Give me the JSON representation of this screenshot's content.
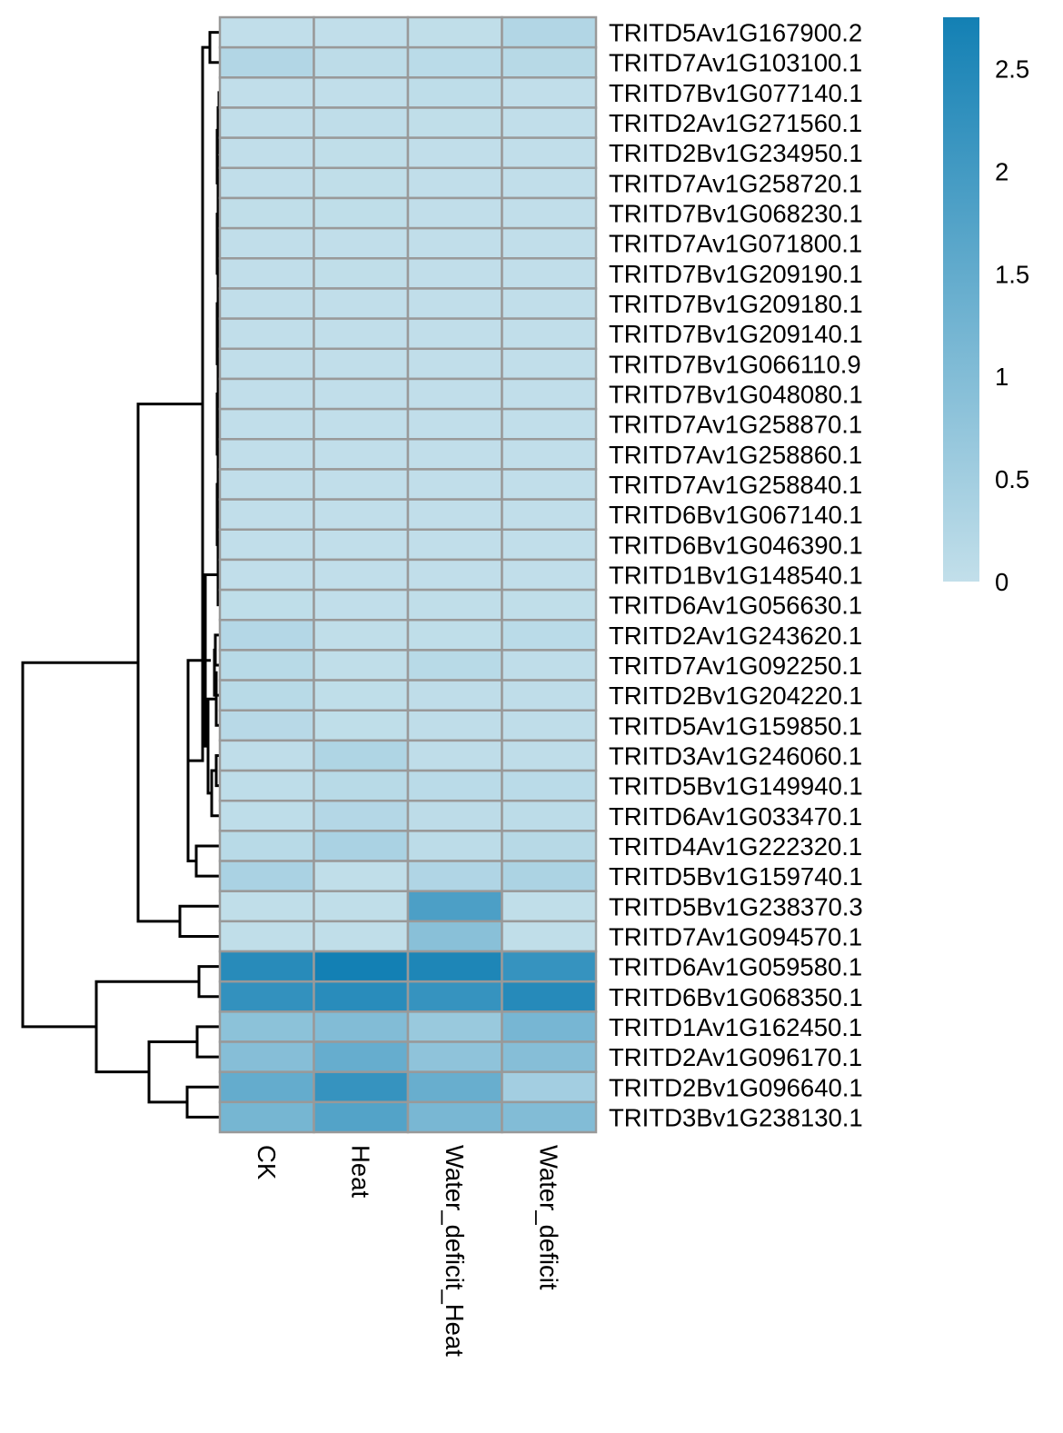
{
  "chart_data": {
    "type": "heatmap",
    "title": "",
    "columns": [
      "CK",
      "Heat",
      "Water_deficit_Heat",
      "Water_deficit"
    ],
    "rows": [
      "TRITD5Av1G167900.2",
      "TRITD7Av1G103100.1",
      "TRITD7Bv1G077140.1",
      "TRITD2Av1G271560.1",
      "TRITD2Bv1G234950.1",
      "TRITD7Av1G258720.1",
      "TRITD7Bv1G068230.1",
      "TRITD7Av1G071800.1",
      "TRITD7Bv1G209190.1",
      "TRITD7Bv1G209180.1",
      "TRITD7Bv1G209140.1",
      "TRITD7Bv1G066110.9",
      "TRITD7Bv1G048080.1",
      "TRITD7Av1G258870.1",
      "TRITD7Av1G258860.1",
      "TRITD7Av1G258840.1",
      "TRITD6Bv1G067140.1",
      "TRITD6Bv1G046390.1",
      "TRITD1Bv1G148540.1",
      "TRITD6Av1G056630.1",
      "TRITD2Av1G243620.1",
      "TRITD7Av1G092250.1",
      "TRITD2Bv1G204220.1",
      "TRITD5Av1G159850.1",
      "TRITD3Av1G246060.1",
      "TRITD5Bv1G149940.1",
      "TRITD6Av1G033470.1",
      "TRITD4Av1G222320.1",
      "TRITD5Bv1G159740.1",
      "TRITD5Bv1G238370.3",
      "TRITD7Av1G094570.1",
      "TRITD6Av1G059580.1",
      "TRITD6Bv1G068350.1",
      "TRITD1Av1G162450.1",
      "TRITD2Av1G096170.1",
      "TRITD2Bv1G096640.1",
      "TRITD3Bv1G238130.1"
    ],
    "values": [
      [
        0.02,
        0.02,
        0.03,
        0.25
      ],
      [
        0.25,
        0.08,
        0.12,
        0.18
      ],
      [
        0.02,
        0.02,
        0.06,
        0.02
      ],
      [
        0.02,
        0.05,
        0.03,
        0.02
      ],
      [
        0.02,
        0.03,
        0.02,
        0.02
      ],
      [
        0.02,
        0.03,
        0.02,
        0.02
      ],
      [
        0.03,
        0.04,
        0.02,
        0.02
      ],
      [
        0.02,
        0.02,
        0.02,
        0.02
      ],
      [
        0.02,
        0.03,
        0.02,
        0.02
      ],
      [
        0.02,
        0.02,
        0.02,
        0.02
      ],
      [
        0.02,
        0.02,
        0.02,
        0.02
      ],
      [
        0.02,
        0.02,
        0.02,
        0.02
      ],
      [
        0.02,
        0.02,
        0.02,
        0.02
      ],
      [
        0.02,
        0.02,
        0.02,
        0.02
      ],
      [
        0.02,
        0.02,
        0.02,
        0.02
      ],
      [
        0.02,
        0.02,
        0.02,
        0.02
      ],
      [
        0.02,
        0.02,
        0.02,
        0.02
      ],
      [
        0.02,
        0.02,
        0.02,
        0.02
      ],
      [
        0.02,
        0.02,
        0.02,
        0.02
      ],
      [
        0.04,
        0.02,
        0.03,
        0.03
      ],
      [
        0.22,
        0.03,
        0.04,
        0.12
      ],
      [
        0.15,
        0.03,
        0.15,
        0.05
      ],
      [
        0.15,
        0.04,
        0.05,
        0.05
      ],
      [
        0.16,
        0.04,
        0.05,
        0.05
      ],
      [
        0.05,
        0.3,
        0.05,
        0.05
      ],
      [
        0.06,
        0.15,
        0.12,
        0.12
      ],
      [
        0.06,
        0.22,
        0.08,
        0.09
      ],
      [
        0.15,
        0.38,
        0.1,
        0.18
      ],
      [
        0.38,
        0.03,
        0.28,
        0.34
      ],
      [
        0.03,
        0.03,
        1.85,
        0.03
      ],
      [
        0.03,
        0.03,
        0.9,
        0.03
      ],
      [
        2.42,
        2.75,
        2.58,
        2.2
      ],
      [
        2.25,
        2.4,
        2.2,
        2.45
      ],
      [
        0.85,
        1.0,
        0.65,
        1.18
      ],
      [
        0.95,
        1.45,
        0.8,
        0.95
      ],
      [
        1.48,
        2.2,
        1.42,
        0.48
      ],
      [
        1.2,
        1.75,
        1.15,
        1.0
      ]
    ],
    "legend": {
      "position": "right",
      "ticks": [
        "0",
        "0.5",
        "1",
        "1.5",
        "2",
        "2.5"
      ],
      "tick_values": [
        0,
        0.5,
        1,
        1.5,
        2,
        2.5
      ],
      "range": [
        0,
        2.75
      ],
      "color_low": "#c2dfea",
      "color_high": "#1380b4"
    },
    "cell_border_color": "#999999",
    "row_dendrogram": "present",
    "grid": false
  }
}
